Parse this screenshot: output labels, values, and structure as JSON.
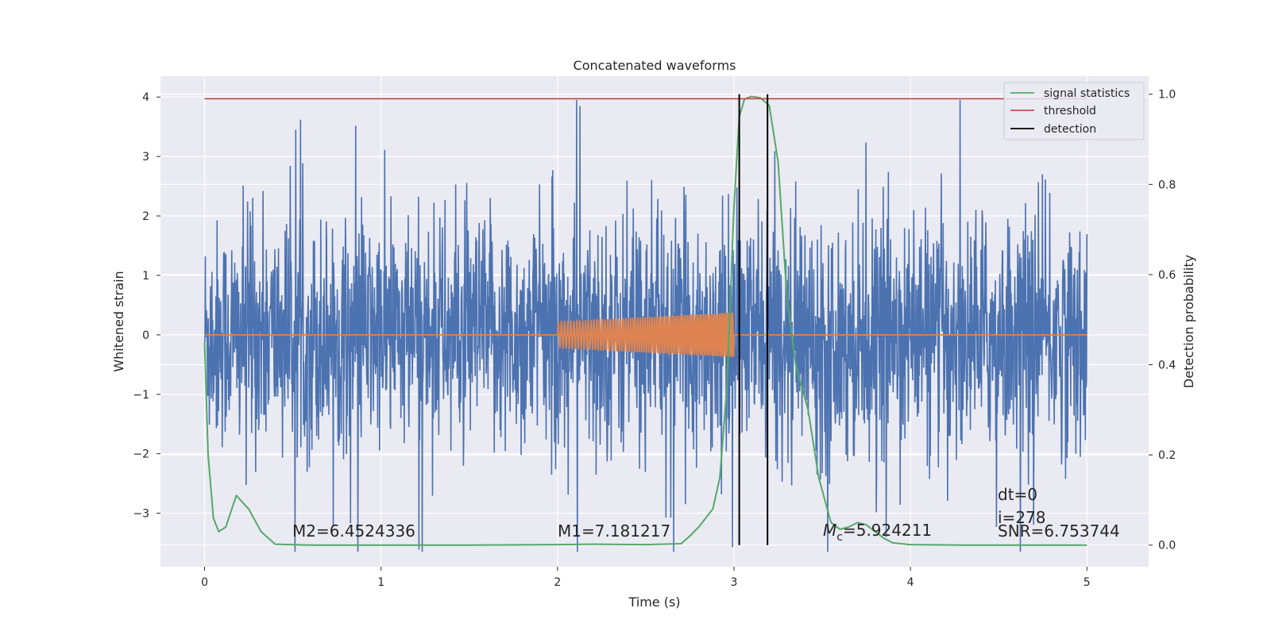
{
  "chart_data": {
    "type": "line",
    "title": "Concatenated waveforms",
    "xlabel": "Time (s)",
    "ylabel": "Whitened strain",
    "ylabel_right": "Detection probability",
    "xlim": [
      -0.25,
      5.35
    ],
    "ylim": [
      -3.9,
      4.35
    ],
    "ylim_right": [
      -0.048,
      1.04
    ],
    "x_ticks": [
      "0",
      "1",
      "2",
      "3",
      "4",
      "5"
    ],
    "y_ticks": [
      "4",
      "3",
      "2",
      "1",
      "0",
      "−1",
      "−2",
      "−3"
    ],
    "y_ticks_right": [
      "1.0",
      "0.8",
      "0.6",
      "0.4",
      "0.2",
      "0.0"
    ],
    "grid": true,
    "legend_position": "top-right",
    "colors": {
      "background": "#eaeaf2",
      "grid": "#ffffff",
      "noise": "#4c72b0",
      "template": "#dd8452",
      "signal_statistics": "#55a868",
      "threshold": "#c44e52",
      "detection": "#000000"
    },
    "series": [
      {
        "name": "signal statistics",
        "axis": "right",
        "x": [
          0,
          0.02,
          0.05,
          0.08,
          0.12,
          0.18,
          0.25,
          0.32,
          0.4,
          0.6,
          1.0,
          1.5,
          2.0,
          2.2,
          2.5,
          2.7,
          2.75,
          2.8,
          2.88,
          2.92,
          2.96,
          3.0,
          3.03,
          3.06,
          3.1,
          3.15,
          3.2,
          3.25,
          3.3,
          3.35,
          3.42,
          3.48,
          3.55,
          3.6,
          3.65,
          3.7,
          3.75,
          3.8,
          3.85,
          3.9,
          4.0,
          4.3,
          4.7,
          5.0
        ],
        "y": [
          0.45,
          0.2,
          0.06,
          0.03,
          0.04,
          0.11,
          0.08,
          0.03,
          0.002,
          0.0,
          0.0,
          0.0,
          0.001,
          0.002,
          0.001,
          0.003,
          0.02,
          0.04,
          0.08,
          0.15,
          0.35,
          0.75,
          0.95,
          0.99,
          0.995,
          0.992,
          0.975,
          0.85,
          0.55,
          0.4,
          0.3,
          0.15,
          0.05,
          0.035,
          0.04,
          0.05,
          0.045,
          0.03,
          0.015,
          0.005,
          0.001,
          0.0,
          0.0,
          0.0
        ]
      },
      {
        "name": "threshold",
        "axis": "right",
        "x": [
          0,
          5
        ],
        "y": [
          0.99,
          0.99
        ]
      },
      {
        "name": "detection",
        "axis": "right",
        "x": [
          3.03,
          3.19
        ],
        "y_range": [
          0.0,
          1.0
        ]
      },
      {
        "name": "",
        "axis": "left",
        "kind": "whitened_noise",
        "x_range": [
          0,
          5
        ],
        "y_range": [
          -3.65,
          3.95
        ]
      },
      {
        "name": "",
        "axis": "left",
        "kind": "template_chirp",
        "x_range": [
          2.0,
          3.0
        ],
        "amplitude_start": 0.22,
        "amplitude_end": 0.38,
        "flat_value": 0
      }
    ],
    "annotations": [
      {
        "text": "M2=6.4524336"
      },
      {
        "text": "M1=7.181217"
      },
      {
        "text_italic": "M",
        "sub": "c",
        "text": "=5.924211"
      },
      {
        "text": "dt=0"
      },
      {
        "text": "i=278"
      },
      {
        "text": "SNR=6.753744"
      }
    ]
  }
}
